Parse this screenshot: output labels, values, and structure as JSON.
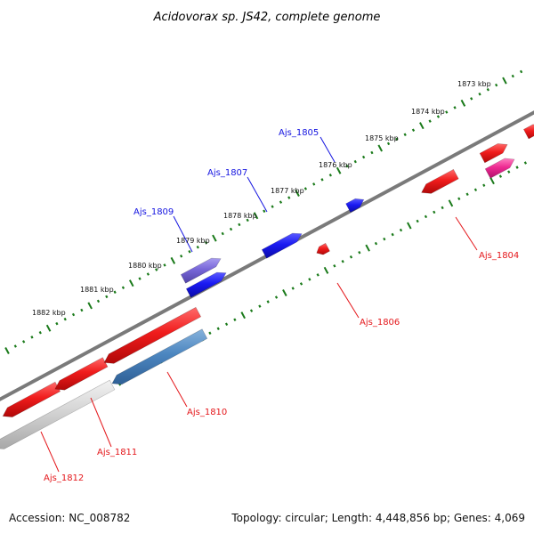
{
  "title": "Acidovorax sp. JS42, complete genome",
  "footer": {
    "accession": "Accession: NC_008782",
    "summary": "Topology: circular; Length: 4,448,856 bp; Genes: 4,069"
  },
  "colors": {
    "backbone": "#7a7a7a",
    "ticks": "#1a7a1a",
    "forward_gene": "#e4171b",
    "reverse_gene": "#1414e0",
    "label_red": "#e4171b",
    "label_blue": "#1414e0"
  },
  "kbp_labels": [
    "1873 kbp",
    "1874 kbp",
    "1875 kbp",
    "1876 kbp",
    "1877 kbp",
    "1878 kbp",
    "1879 kbp",
    "1880 kbp",
    "1881 kbp",
    "1882 kbp"
  ],
  "gene_labels": [
    {
      "text": "Ajs_1805",
      "color": "#1414e0"
    },
    {
      "text": "Ajs_1807",
      "color": "#1414e0"
    },
    {
      "text": "Ajs_1809",
      "color": "#1414e0"
    },
    {
      "text": "Ajs_1804",
      "color": "#e4171b"
    },
    {
      "text": "Ajs_1806",
      "color": "#e4171b"
    },
    {
      "text": "Ajs_1810",
      "color": "#e4171b"
    },
    {
      "text": "Ajs_1811",
      "color": "#e4171b"
    },
    {
      "text": "Ajs_1812",
      "color": "#e4171b"
    }
  ]
}
